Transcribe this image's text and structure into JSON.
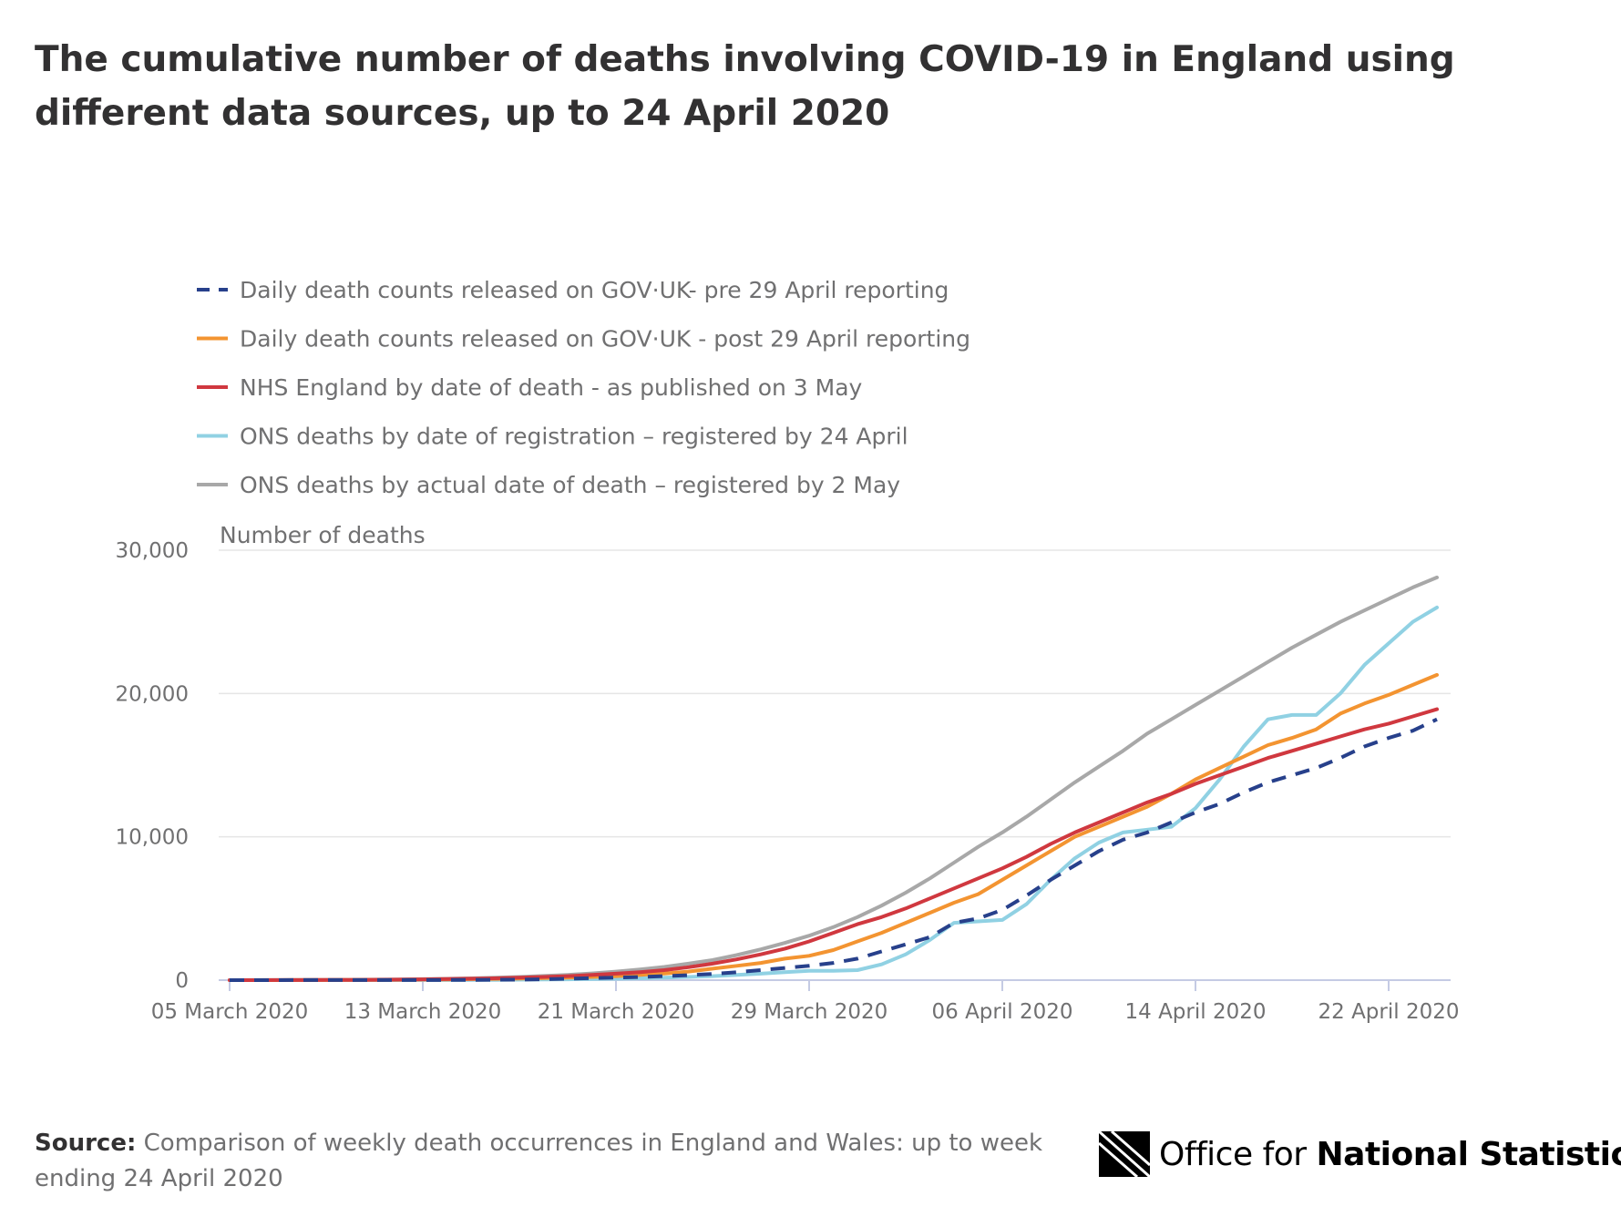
{
  "title": "The cumulative number of deaths involving COVID-19 in England using different data sources, up to 24 April 2020",
  "source": {
    "label": "Source:",
    "text": "Comparison of weekly death occurrences in England and Wales: up to week ending 24 April 2020"
  },
  "logo": {
    "text_light": "Office for",
    "text_bold": "National Statistics"
  },
  "chart_data": {
    "type": "line",
    "ylabel": "Number of deaths",
    "ylim": [
      0,
      30000
    ],
    "yticks": [
      0,
      10000,
      20000,
      30000
    ],
    "ytick_labels": [
      "0",
      "10,000",
      "20,000",
      "30,000"
    ],
    "x": [
      "05 March 2020",
      "06 March 2020",
      "07 March 2020",
      "08 March 2020",
      "09 March 2020",
      "10 March 2020",
      "11 March 2020",
      "12 March 2020",
      "13 March 2020",
      "14 March 2020",
      "15 March 2020",
      "16 March 2020",
      "17 March 2020",
      "18 March 2020",
      "19 March 2020",
      "20 March 2020",
      "21 March 2020",
      "22 March 2020",
      "23 March 2020",
      "24 March 2020",
      "25 March 2020",
      "26 March 2020",
      "27 March 2020",
      "28 March 2020",
      "29 March 2020",
      "30 March 2020",
      "31 March 2020",
      "01 April 2020",
      "02 April 2020",
      "03 April 2020",
      "04 April 2020",
      "05 April 2020",
      "06 April 2020",
      "07 April 2020",
      "08 April 2020",
      "09 April 2020",
      "10 April 2020",
      "11 April 2020",
      "12 April 2020",
      "13 April 2020",
      "14 April 2020",
      "15 April 2020",
      "16 April 2020",
      "17 April 2020",
      "18 April 2020",
      "19 April 2020",
      "20 April 2020",
      "21 April 2020",
      "22 April 2020",
      "23 April 2020",
      "24 April 2020"
    ],
    "xtick_labels": [
      "05 March 2020",
      "13 March 2020",
      "21 March 2020",
      "29 March 2020",
      "06 April 2020",
      "14 April 2020",
      "22 April 2020"
    ],
    "legend_position": "top-left",
    "grid": true,
    "series": [
      {
        "name": "Daily death counts released on GOV·UK- pre 29 April reporting",
        "color": "#27408b",
        "dashed": true,
        "values": [
          1,
          2,
          3,
          4,
          5,
          6,
          7,
          8,
          9,
          10,
          15,
          25,
          40,
          60,
          100,
          140,
          180,
          220,
          280,
          350,
          430,
          550,
          700,
          850,
          1000,
          1200,
          1500,
          2000,
          2500,
          3000,
          4000,
          4300,
          4900,
          5900,
          7000,
          8000,
          9000,
          9800,
          10300,
          11000,
          11700,
          12300,
          13100,
          13800,
          14300,
          14800,
          15500,
          16300,
          16900,
          17400,
          18200
        ]
      },
      {
        "name": "Daily death counts released on GOV·UK - post 29 April reporting",
        "color": "#f39431",
        "dashed": false,
        "values": [
          1,
          2,
          3,
          5,
          8,
          12,
          18,
          25,
          35,
          50,
          70,
          90,
          110,
          140,
          180,
          220,
          280,
          360,
          460,
          600,
          800,
          1000,
          1200,
          1500,
          1700,
          2100,
          2700,
          3300,
          4000,
          4700,
          5400,
          6000,
          7000,
          8000,
          9000,
          10000,
          10700,
          11400,
          12100,
          13000,
          14000,
          14800,
          15600,
          16400,
          16900,
          17500,
          18600,
          19300,
          19900,
          20600,
          21300
        ]
      },
      {
        "name": "NHS England by date of death - as published on 3 May",
        "color": "#d0383f",
        "dashed": false,
        "values": [
          1,
          3,
          5,
          8,
          12,
          18,
          27,
          40,
          55,
          75,
          100,
          130,
          170,
          220,
          280,
          360,
          450,
          560,
          700,
          900,
          1150,
          1450,
          1800,
          2200,
          2700,
          3300,
          3900,
          4400,
          5000,
          5700,
          6400,
          7100,
          7800,
          8600,
          9500,
          10300,
          11000,
          11700,
          12400,
          13000,
          13700,
          14300,
          14900,
          15500,
          16000,
          16500,
          17000,
          17500,
          17900,
          18400,
          18900
        ]
      },
      {
        "name": "ONS deaths by date of registration – registered by 24 April",
        "color": "#90d1e3",
        "dashed": false,
        "values": [
          0,
          0,
          0,
          0,
          0,
          1,
          2,
          3,
          5,
          8,
          12,
          20,
          30,
          45,
          60,
          80,
          100,
          130,
          170,
          220,
          280,
          360,
          450,
          550,
          650,
          650,
          700,
          1100,
          1800,
          2800,
          4000,
          4100,
          4200,
          5300,
          7000,
          8500,
          9600,
          10300,
          10500,
          10700,
          12000,
          14000,
          16300,
          18200,
          18500,
          18500,
          20000,
          22000,
          23500,
          25000,
          26000
        ]
      },
      {
        "name": "ONS deaths by actual date of death – registered by 2 May",
        "color": "#a8a8a8",
        "dashed": false,
        "values": [
          2,
          4,
          7,
          11,
          17,
          25,
          35,
          50,
          70,
          95,
          130,
          170,
          220,
          290,
          370,
          470,
          600,
          750,
          920,
          1150,
          1400,
          1750,
          2150,
          2600,
          3100,
          3700,
          4400,
          5200,
          6100,
          7100,
          8200,
          9300,
          10300,
          11400,
          12600,
          13800,
          14900,
          16000,
          17200,
          18200,
          19200,
          20200,
          21200,
          22200,
          23200,
          24100,
          25000,
          25800,
          26600,
          27400,
          28100
        ]
      }
    ]
  }
}
